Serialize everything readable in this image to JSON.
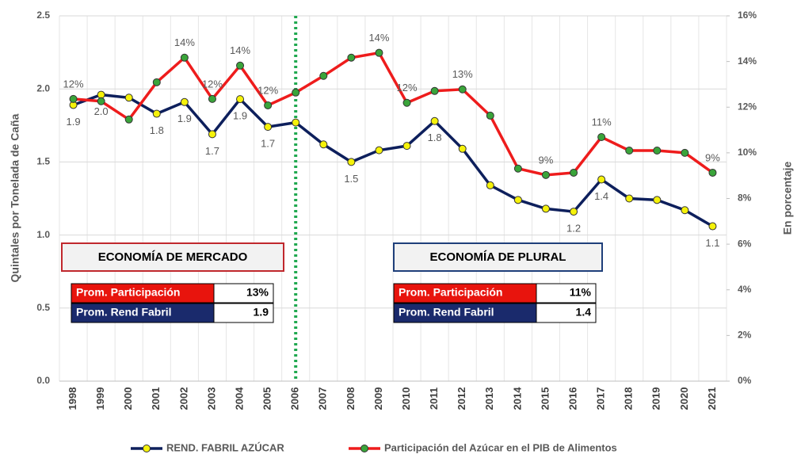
{
  "chart_data": {
    "type": "line",
    "y_label": "Quintales por Tonelada de Caña",
    "y2_label": "En porcentaje",
    "categories": [
      "1998",
      "1999",
      "2000",
      "2001",
      "2002",
      "2003",
      "2004",
      "2005",
      "2006",
      "2007",
      "2008",
      "2009",
      "2010",
      "2011",
      "2012",
      "2013",
      "2014",
      "2015",
      "2016",
      "2017",
      "2018",
      "2019",
      "2020",
      "2021"
    ],
    "series": [
      {
        "name": "REND. FABRIL AZÚCAR",
        "color": "#0d1f5c",
        "marker_color": "#f5f20a",
        "axis": "y",
        "values": [
          1.89,
          1.96,
          1.94,
          1.83,
          1.91,
          1.69,
          1.93,
          1.74,
          1.77,
          1.62,
          1.5,
          1.58,
          1.61,
          1.78,
          1.59,
          1.34,
          1.24,
          1.18,
          1.16,
          1.38,
          1.25,
          1.24,
          1.17,
          1.06
        ],
        "value_labels": [
          "1.9",
          "2.0",
          null,
          "1.8",
          "1.9",
          "1.7",
          "1.9",
          "1.7",
          null,
          null,
          "1.5",
          null,
          null,
          "1.8",
          null,
          null,
          null,
          null,
          "1.2",
          "1.4",
          null,
          null,
          null,
          "1.1"
        ]
      },
      {
        "name": "Participación del Azúcar en el PIB de Alimentos",
        "color": "#ee1c1c",
        "marker_color": "#3aa43a",
        "axis": "y2",
        "values": [
          12.36,
          12.26,
          11.46,
          13.09,
          14.17,
          12.36,
          13.82,
          12.08,
          12.64,
          13.37,
          14.17,
          14.38,
          12.19,
          12.71,
          12.78,
          11.63,
          9.31,
          9.03,
          9.13,
          10.69,
          10.1,
          10.1,
          10.0,
          9.13
        ],
        "value_labels": [
          "12%",
          null,
          null,
          null,
          "14%",
          "12%",
          "14%",
          "12%",
          null,
          null,
          null,
          "14%",
          "12%",
          null,
          "13%",
          null,
          null,
          "9%",
          null,
          "11%",
          null,
          null,
          null,
          "9%"
        ]
      }
    ],
    "ylim": [
      0,
      2.5
    ],
    "yticks": [
      {
        "value": 0,
        "label": "0.0"
      },
      0.5,
      {
        "value": 1,
        "label": "1.0"
      },
      1.5,
      {
        "value": 2,
        "label": "2.0"
      },
      2.5
    ],
    "y2lim": [
      0,
      16
    ],
    "y2ticks": [
      {
        "value": 0,
        "label": "0%"
      },
      {
        "value": 2,
        "label": "2%"
      },
      {
        "value": 4,
        "label": "4%"
      },
      {
        "value": 6,
        "label": "6%"
      },
      {
        "value": 8,
        "label": "8%"
      },
      {
        "value": 10,
        "label": "10%"
      },
      {
        "value": 12,
        "label": "12%"
      },
      {
        "value": 14,
        "label": "14%"
      },
      {
        "value": 16,
        "label": "16%"
      }
    ],
    "grid": true,
    "vline_category": "2006",
    "vline_color": "#1fa84f",
    "panels": [
      {
        "title": "ECONOMÍA DE MERCADO",
        "border": "#c0282d",
        "rows": [
          {
            "label": "Prom. Participación",
            "value": "13%"
          },
          {
            "label": "Prom. Rend Fabril",
            "value": "1.9"
          }
        ]
      },
      {
        "title": "ECONOMÍA DE PLURAL",
        "border": "#1f3f7a",
        "rows": [
          {
            "label": "Prom. Participación",
            "value": "11%"
          },
          {
            "label": "Prom. Rend Fabril",
            "value": "1.4"
          }
        ]
      }
    ]
  }
}
